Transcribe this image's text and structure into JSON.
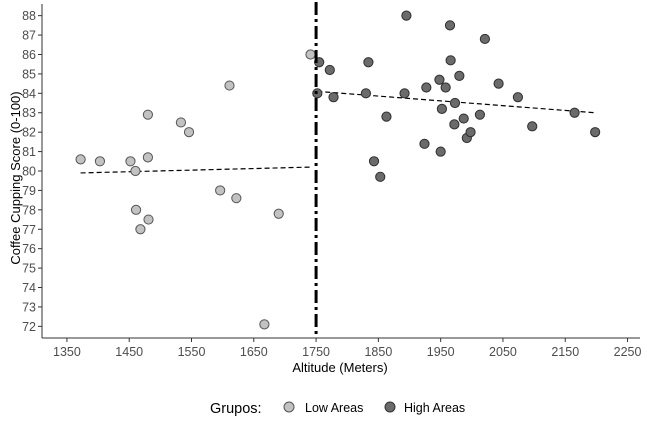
{
  "chart_data": {
    "type": "scatter",
    "title": "",
    "xlabel": "Altitude (Meters)",
    "ylabel": "Coffee Cupping Score (0-100)",
    "xlim": [
      1310,
      2270
    ],
    "ylim": [
      71.4,
      88.6
    ],
    "x_ticks": [
      1350,
      1450,
      1550,
      1650,
      1750,
      1850,
      1950,
      2050,
      2150,
      2250
    ],
    "y_ticks": [
      72,
      73,
      74,
      75,
      76,
      77,
      78,
      79,
      80,
      81,
      82,
      83,
      84,
      85,
      86,
      87,
      88
    ],
    "grid": false,
    "cutoff": {
      "x": 1750,
      "style": "dash-dot"
    },
    "legend": {
      "title": "Grupos:",
      "position": "bottom",
      "entries": [
        {
          "label": "Low Areas",
          "color": "#c2c2c2"
        },
        {
          "label": "High Areas",
          "color": "#6b6b6b"
        }
      ]
    },
    "series": [
      {
        "name": "Low Areas",
        "color": "#c2c2c2",
        "points": [
          {
            "x": 1372,
            "y": 80.6
          },
          {
            "x": 1403,
            "y": 80.5
          },
          {
            "x": 1452,
            "y": 80.5
          },
          {
            "x": 1460,
            "y": 80.0
          },
          {
            "x": 1480,
            "y": 80.7
          },
          {
            "x": 1480,
            "y": 82.9
          },
          {
            "x": 1533,
            "y": 82.5
          },
          {
            "x": 1546,
            "y": 82.0
          },
          {
            "x": 1461,
            "y": 78.0
          },
          {
            "x": 1481,
            "y": 77.5
          },
          {
            "x": 1468,
            "y": 77.0
          },
          {
            "x": 1596,
            "y": 79.0
          },
          {
            "x": 1622,
            "y": 78.6
          },
          {
            "x": 1611,
            "y": 84.4
          },
          {
            "x": 1690,
            "y": 77.8
          },
          {
            "x": 1667,
            "y": 72.1
          },
          {
            "x": 1741,
            "y": 86.0
          }
        ],
        "trend": [
          {
            "x": 1372,
            "y": 79.9
          },
          {
            "x": 1740,
            "y": 80.2
          }
        ]
      },
      {
        "name": "High Areas",
        "color": "#6b6b6b",
        "points": [
          {
            "x": 1752,
            "y": 84.0
          },
          {
            "x": 1755,
            "y": 85.6
          },
          {
            "x": 1772,
            "y": 85.2
          },
          {
            "x": 1778,
            "y": 83.8
          },
          {
            "x": 1830,
            "y": 84.0
          },
          {
            "x": 1834,
            "y": 85.6
          },
          {
            "x": 1843,
            "y": 80.5
          },
          {
            "x": 1853,
            "y": 79.7
          },
          {
            "x": 1863,
            "y": 82.8
          },
          {
            "x": 1895,
            "y": 88.0
          },
          {
            "x": 1892,
            "y": 84.0
          },
          {
            "x": 1924,
            "y": 81.4
          },
          {
            "x": 1927,
            "y": 84.3
          },
          {
            "x": 1950,
            "y": 81.0
          },
          {
            "x": 1948,
            "y": 84.7
          },
          {
            "x": 1952,
            "y": 83.2
          },
          {
            "x": 1958,
            "y": 84.3
          },
          {
            "x": 1965,
            "y": 87.5
          },
          {
            "x": 1966,
            "y": 85.7
          },
          {
            "x": 1972,
            "y": 82.4
          },
          {
            "x": 1973,
            "y": 83.5
          },
          {
            "x": 1980,
            "y": 84.9
          },
          {
            "x": 1987,
            "y": 82.7
          },
          {
            "x": 1992,
            "y": 81.7
          },
          {
            "x": 1998,
            "y": 82.0
          },
          {
            "x": 2013,
            "y": 82.9
          },
          {
            "x": 2021,
            "y": 86.8
          },
          {
            "x": 2043,
            "y": 84.5
          },
          {
            "x": 2074,
            "y": 83.8
          },
          {
            "x": 2097,
            "y": 82.3
          },
          {
            "x": 2165,
            "y": 83.0
          },
          {
            "x": 2198,
            "y": 82.0
          }
        ],
        "trend": [
          {
            "x": 1752,
            "y": 84.1
          },
          {
            "x": 2198,
            "y": 83.0
          }
        ]
      }
    ]
  }
}
